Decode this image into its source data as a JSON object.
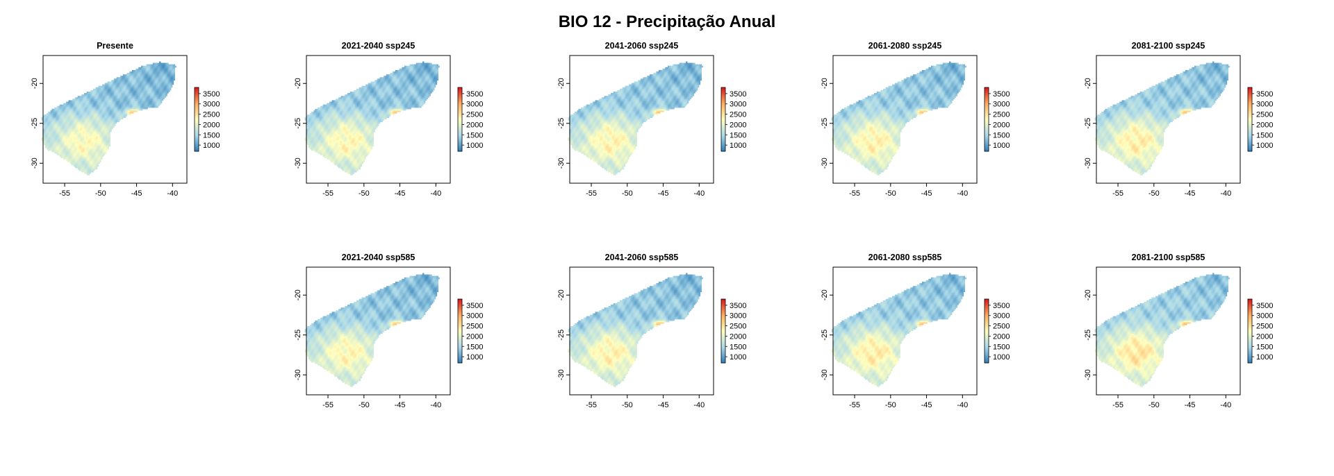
{
  "figure": {
    "title": "BIO 12 - Precipitação Anual"
  },
  "colors": {
    "scale": [
      "#2c7bb6",
      "#abd9e9",
      "#ffffbf",
      "#fdae61",
      "#d7191c"
    ],
    "background": "#ffffff",
    "axis": "#000000"
  },
  "legend": {
    "ticks": [
      "3500",
      "3000",
      "2500",
      "2000",
      "1500",
      "1000"
    ],
    "range": [
      700,
      3800
    ]
  },
  "axes": {
    "x_ticks": [
      "-55",
      "-50",
      "-45",
      "-40"
    ],
    "y_ticks": [
      "-20",
      "-25",
      "-30"
    ],
    "xlim": [
      -58,
      -38
    ],
    "ylim": [
      -32.5,
      -16.5
    ]
  },
  "chart_data": [
    {
      "type": "heatmap",
      "title": "Presente",
      "wetness": 0.0
    },
    {
      "type": "heatmap",
      "title": "2021-2040 ssp245",
      "wetness": 0.05
    },
    {
      "type": "heatmap",
      "title": "2041-2060 ssp245",
      "wetness": 0.08
    },
    {
      "type": "heatmap",
      "title": "2061-2080 ssp245",
      "wetness": 0.1
    },
    {
      "type": "heatmap",
      "title": "2081-2100 ssp245",
      "wetness": 0.14
    },
    {
      "type": "heatmap",
      "title": "2021-2040 ssp585",
      "wetness": 0.06
    },
    {
      "type": "heatmap",
      "title": "2041-2060 ssp585",
      "wetness": 0.1
    },
    {
      "type": "heatmap",
      "title": "2061-2080 ssp585",
      "wetness": 0.15
    },
    {
      "type": "heatmap",
      "title": "2081-2100 ssp585",
      "wetness": 0.22
    }
  ]
}
